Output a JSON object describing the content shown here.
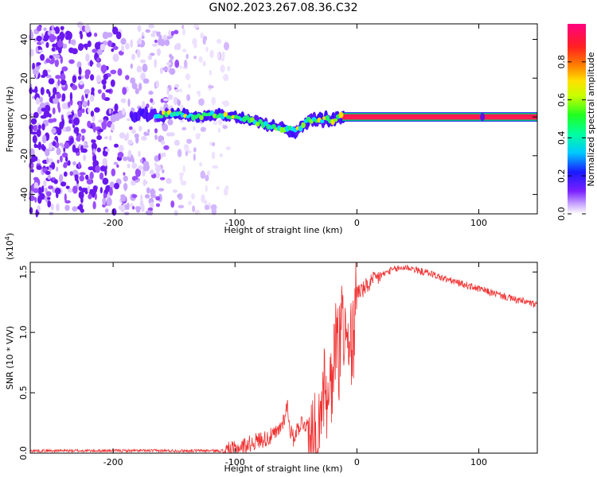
{
  "title": "GN02.2023.267.08.36.C32",
  "chart_data": [
    {
      "type": "heatmap",
      "xlabel": "Height of straight line (km)",
      "ylabel": "Frequency (Hz)",
      "xlim": [
        -268,
        148
      ],
      "ylim": [
        -50,
        48
      ],
      "x_ticks": [
        -200,
        -100,
        0,
        100
      ],
      "x_tick_labels": [
        "-200",
        "-100",
        "0",
        "100"
      ],
      "y_ticks": [
        -40,
        -20,
        0,
        20,
        40
      ],
      "y_tick_labels": [
        "-40",
        "-20",
        "0",
        "20",
        "40"
      ],
      "colorbar": {
        "label": "Normalized spectral amplitude",
        "range": [
          0,
          1
        ],
        "ticks": [
          0,
          0.2,
          0.4,
          0.6,
          0.8
        ],
        "tick_labels": [
          "0.0",
          "0.2",
          "0.4",
          "0.6",
          "0.8"
        ],
        "colormap": "rainbow (white-purple-blue-cyan-green-yellow-orange-red-magenta)"
      },
      "peak_track": {
        "x": [
          -180,
          -170,
          -160,
          -150,
          -140,
          -130,
          -120,
          -110,
          -100,
          -90,
          -80,
          -70,
          -60,
          -50,
          -45,
          -40,
          -35,
          -30,
          -25,
          -20,
          -15,
          -10,
          0,
          50,
          100,
          148
        ],
        "frequency": [
          2,
          1,
          1,
          2,
          1,
          0,
          1,
          1,
          0,
          -1,
          -3,
          -5,
          -6,
          -7,
          -5,
          -2,
          -1,
          -2,
          -1,
          -2,
          0,
          0,
          0,
          0,
          0,
          0
        ]
      },
      "noise_region_x": [
        -268,
        -105
      ],
      "grid": false
    },
    {
      "type": "line",
      "xlabel": "Height of straight line (km)",
      "ylabel": "SNR (10 * V/V)",
      "y_multiplier": "(x10^4)",
      "y_multiplier_base": "(x10",
      "y_multiplier_exp": "4",
      "y_multiplier_close": ")",
      "xlim": [
        -268,
        148
      ],
      "ylim": [
        0,
        1.58
      ],
      "x_ticks": [
        -200,
        -100,
        0,
        100
      ],
      "x_tick_labels": [
        "-200",
        "-100",
        "0",
        "100"
      ],
      "y_ticks": [
        0,
        0.5,
        1.0,
        1.5
      ],
      "y_tick_labels": [
        "0.0",
        "0.5",
        "1.0",
        "1.5"
      ],
      "series": [
        {
          "color": "#f03232",
          "x": [
            -268,
            -250,
            -200,
            -150,
            -120,
            -110,
            -100,
            -95,
            -90,
            -85,
            -80,
            -75,
            -70,
            -65,
            -60,
            -57,
            -55,
            -52,
            -50,
            -45,
            -40,
            -35,
            -30,
            -27,
            -25,
            -22,
            -20,
            -17,
            -15,
            -12,
            -10,
            -5,
            0,
            5,
            10,
            15,
            20,
            25,
            30,
            35,
            40,
            45,
            50,
            60,
            70,
            80,
            90,
            100,
            110,
            120,
            130,
            140,
            148
          ],
          "y": [
            0.02,
            0.02,
            0.02,
            0.02,
            0.02,
            0.02,
            0.03,
            0.05,
            0.07,
            0.09,
            0.11,
            0.12,
            0.14,
            0.17,
            0.28,
            0.4,
            0.2,
            0.12,
            0.18,
            0.26,
            0.22,
            0.5,
            0.45,
            0.95,
            0.6,
            1.1,
            0.9,
            1.3,
            1.1,
            1.45,
            1.2,
            1.3,
            1.35,
            1.35,
            1.4,
            1.44,
            1.47,
            1.5,
            1.52,
            1.53,
            1.54,
            1.53,
            1.51,
            1.49,
            1.45,
            1.42,
            1.39,
            1.36,
            1.33,
            1.3,
            1.27,
            1.25,
            1.22
          ]
        }
      ],
      "grid": false
    }
  ]
}
